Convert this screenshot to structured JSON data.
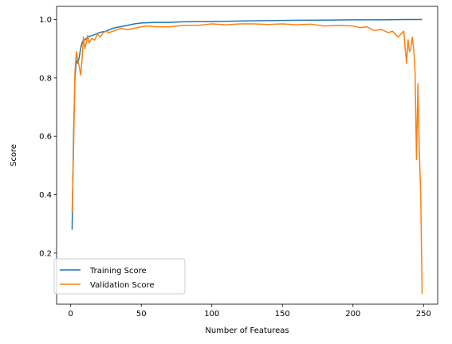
{
  "chart_data": {
    "type": "line",
    "title": "",
    "xlabel": "Number of Featureas",
    "ylabel": "Score",
    "xlim": [
      -10,
      260
    ],
    "ylim": [
      0.025,
      1.045
    ],
    "xticks": [
      0,
      50,
      100,
      150,
      200,
      250
    ],
    "yticks": [
      0.2,
      0.4,
      0.6,
      0.8,
      1.0
    ],
    "xtick_labels": [
      "0",
      "50",
      "100",
      "150",
      "200",
      "250"
    ],
    "ytick_labels": [
      "0.2",
      "0.4",
      "0.6",
      "0.8",
      "1.0"
    ],
    "grid": false,
    "legend_position": "lower-left",
    "series": [
      {
        "name": "Training Score",
        "color": "#1f77b4",
        "points": [
          [
            1,
            0.28
          ],
          [
            2,
            0.6
          ],
          [
            3,
            0.8
          ],
          [
            4,
            0.86
          ],
          [
            5,
            0.85
          ],
          [
            6,
            0.87
          ],
          [
            7,
            0.9
          ],
          [
            8,
            0.92
          ],
          [
            9,
            0.93
          ],
          [
            10,
            0.93
          ],
          [
            12,
            0.94
          ],
          [
            15,
            0.945
          ],
          [
            18,
            0.95
          ],
          [
            20,
            0.955
          ],
          [
            25,
            0.96
          ],
          [
            30,
            0.97
          ],
          [
            35,
            0.975
          ],
          [
            40,
            0.98
          ],
          [
            45,
            0.985
          ],
          [
            50,
            0.988
          ],
          [
            60,
            0.99
          ],
          [
            70,
            0.99
          ],
          [
            80,
            0.992
          ],
          [
            100,
            0.993
          ],
          [
            120,
            0.995
          ],
          [
            150,
            0.997
          ],
          [
            180,
            0.998
          ],
          [
            200,
            0.999
          ],
          [
            220,
            0.999
          ],
          [
            240,
            1.0
          ],
          [
            249,
            1.0
          ]
        ]
      },
      {
        "name": "Validation Score",
        "color": "#ff7f0e",
        "points": [
          [
            1,
            0.34
          ],
          [
            2,
            0.55
          ],
          [
            3,
            0.82
          ],
          [
            4,
            0.89
          ],
          [
            5,
            0.86
          ],
          [
            6,
            0.84
          ],
          [
            7,
            0.81
          ],
          [
            8,
            0.86
          ],
          [
            9,
            0.94
          ],
          [
            10,
            0.9
          ],
          [
            11,
            0.92
          ],
          [
            12,
            0.945
          ],
          [
            13,
            0.92
          ],
          [
            15,
            0.935
          ],
          [
            17,
            0.93
          ],
          [
            19,
            0.95
          ],
          [
            21,
            0.94
          ],
          [
            23,
            0.955
          ],
          [
            25,
            0.96
          ],
          [
            27,
            0.955
          ],
          [
            30,
            0.96
          ],
          [
            33,
            0.965
          ],
          [
            36,
            0.97
          ],
          [
            40,
            0.965
          ],
          [
            45,
            0.97
          ],
          [
            50,
            0.975
          ],
          [
            55,
            0.978
          ],
          [
            60,
            0.975
          ],
          [
            70,
            0.975
          ],
          [
            80,
            0.98
          ],
          [
            90,
            0.98
          ],
          [
            100,
            0.985
          ],
          [
            110,
            0.982
          ],
          [
            120,
            0.985
          ],
          [
            130,
            0.985
          ],
          [
            140,
            0.983
          ],
          [
            150,
            0.985
          ],
          [
            160,
            0.982
          ],
          [
            170,
            0.984
          ],
          [
            180,
            0.978
          ],
          [
            190,
            0.98
          ],
          [
            200,
            0.978
          ],
          [
            205,
            0.972
          ],
          [
            210,
            0.975
          ],
          [
            215,
            0.962
          ],
          [
            220,
            0.966
          ],
          [
            225,
            0.955
          ],
          [
            228,
            0.96
          ],
          [
            230,
            0.95
          ],
          [
            232,
            0.94
          ],
          [
            234,
            0.95
          ],
          [
            236,
            0.96
          ],
          [
            237,
            0.9
          ],
          [
            238,
            0.85
          ],
          [
            239,
            0.93
          ],
          [
            240,
            0.89
          ],
          [
            241,
            0.9
          ],
          [
            242,
            0.94
          ],
          [
            243,
            0.9
          ],
          [
            244,
            0.82
          ],
          [
            245,
            0.52
          ],
          [
            246,
            0.78
          ],
          [
            247,
            0.55
          ],
          [
            248,
            0.4
          ],
          [
            249,
            0.06
          ]
        ]
      }
    ]
  }
}
